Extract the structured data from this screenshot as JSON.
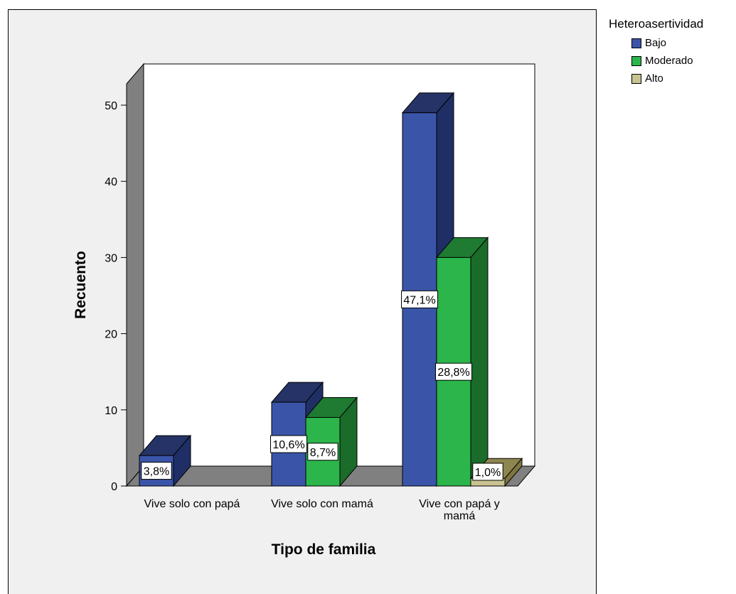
{
  "chart_data": {
    "type": "bar",
    "title": "",
    "xlabel": "Tipo de familia",
    "ylabel": "Recuento",
    "categories": [
      "Vive solo con papá",
      "Vive solo con mamá",
      "Vive con papá y mamá"
    ],
    "category_lines": [
      [
        "Vive solo con papá"
      ],
      [
        "Vive solo con mamá"
      ],
      [
        "Vive con papá y",
        "mamá"
      ]
    ],
    "yticks": [
      "0",
      "10",
      "20",
      "30",
      "40",
      "50"
    ],
    "ylim": [
      0,
      52
    ],
    "grid": false,
    "legend_title": "Heteroasertividad",
    "legend_position": "top-right",
    "series": [
      {
        "name": "Bajo",
        "values": [
          4,
          11,
          49
        ],
        "labels": [
          "3,8%",
          "10,6%",
          "47,1%"
        ],
        "color": "#3a55a8",
        "top_color": "#253366",
        "side_color": "#1f2f66"
      },
      {
        "name": "Moderado",
        "values": [
          null,
          9,
          30
        ],
        "labels": [
          "",
          "8,7%",
          "28,8%"
        ],
        "color": "#2bb54a",
        "top_color": "#1f7a32",
        "side_color": "#1b6b2a"
      },
      {
        "name": "Alto",
        "values": [
          null,
          null,
          1
        ],
        "labels": [
          "",
          "",
          "1,0%"
        ],
        "color": "#c9c291",
        "top_color": "#8e8650",
        "side_color": "#7d7641"
      }
    ]
  }
}
